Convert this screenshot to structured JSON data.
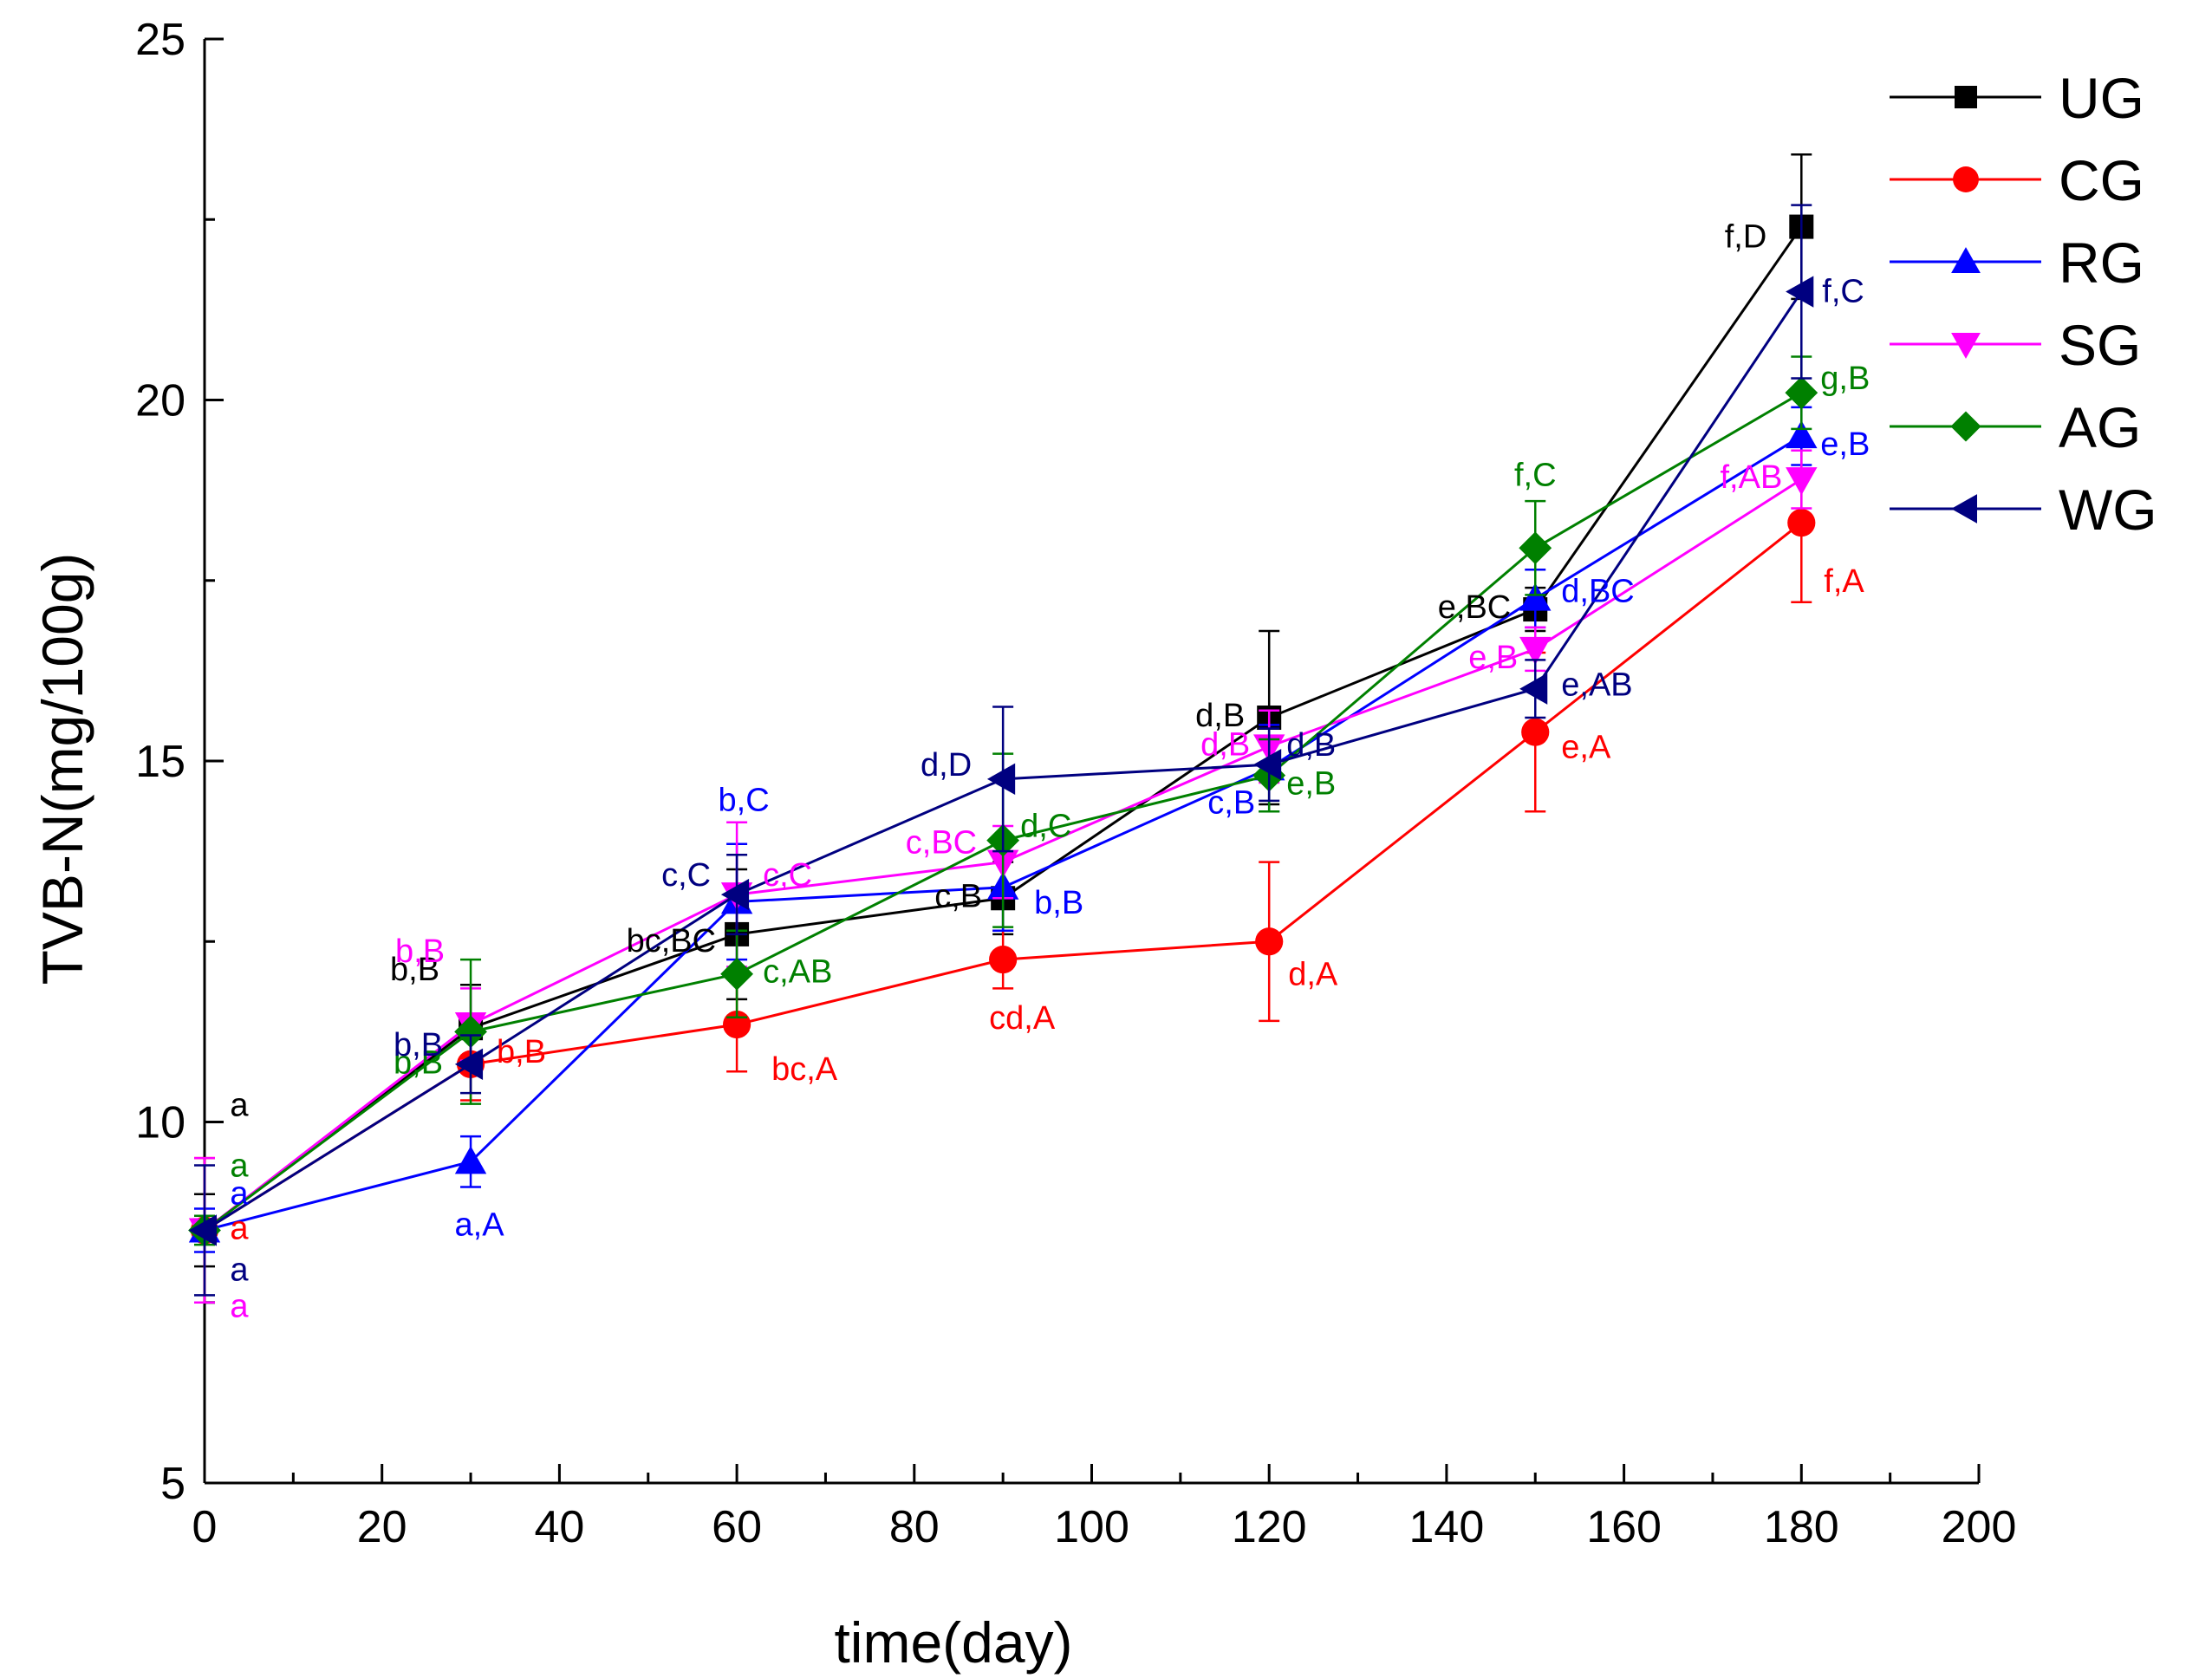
{
  "chart_data": {
    "type": "line",
    "title": "",
    "xlabel": "time(day)",
    "ylabel": "TVB-N(mg/100g)",
    "xlim": [
      0,
      200
    ],
    "ylim": [
      5,
      25
    ],
    "xticks": [
      0,
      20,
      40,
      60,
      80,
      100,
      120,
      140,
      160,
      180,
      200
    ],
    "yticks": [
      5,
      10,
      15,
      20,
      25
    ],
    "grid": false,
    "legend_position": "top-right",
    "x": [
      0,
      30,
      60,
      90,
      120,
      150,
      180
    ],
    "series": [
      {
        "name": "UG",
        "color": "#000000",
        "marker": "square",
        "values": [
          8.5,
          11.3,
          12.6,
          13.1,
          15.6,
          17.1,
          22.4
        ],
        "errors": [
          0.5,
          0.6,
          0.9,
          0.5,
          1.2,
          0.3,
          1.0
        ],
        "labels": [
          "a",
          "b,B",
          "bc,BC",
          "c,B",
          "d,B",
          "e,BC",
          "f,D"
        ]
      },
      {
        "name": "CG",
        "color": "#ff0000",
        "marker": "circle",
        "values": [
          8.5,
          10.8,
          11.35,
          12.25,
          12.5,
          15.4,
          18.3
        ],
        "errors": [
          1.0,
          0.5,
          0.65,
          0.4,
          1.1,
          1.1,
          1.1
        ],
        "labels": [
          "a",
          "b,B",
          "bc,A",
          "cd,A",
          "d,A",
          "e,A",
          "f,A"
        ]
      },
      {
        "name": "RG",
        "color": "#0000ff",
        "marker": "triangle-up",
        "values": [
          8.5,
          9.45,
          13.05,
          13.25,
          14.9,
          17.25,
          19.5
        ],
        "errors": [
          0.3,
          0.35,
          0.8,
          0.6,
          0.6,
          0.4,
          0.4
        ],
        "labels": [
          "a",
          "a,A",
          "b,C",
          "b,B",
          "c,B",
          "d,BC",
          "e,B"
        ]
      },
      {
        "name": "SG",
        "color": "#ff00ff",
        "marker": "triangle-down",
        "values": [
          8.5,
          11.35,
          13.15,
          13.6,
          15.2,
          16.55,
          18.9
        ],
        "errors": [
          1.0,
          0.5,
          1.0,
          0.5,
          0.5,
          0.3,
          0.4
        ],
        "labels": [
          "a",
          "b,B",
          "c,C",
          "c,BC",
          "d,B",
          "e,B",
          "f,AB"
        ]
      },
      {
        "name": "AG",
        "color": "#008000",
        "marker": "diamond",
        "values": [
          8.5,
          11.25,
          12.05,
          13.9,
          14.8,
          17.95,
          20.1
        ],
        "errors": [
          0.2,
          1.0,
          0.6,
          1.2,
          0.5,
          0.65,
          0.5
        ],
        "labels": [
          "a",
          "b,B",
          "c,AB",
          "d,C",
          "e,B",
          "f,C",
          "g,B"
        ]
      },
      {
        "name": "WG",
        "color": "#000080",
        "marker": "triangle-left",
        "values": [
          8.5,
          10.8,
          13.15,
          14.75,
          14.95,
          16.0,
          21.5
        ],
        "errors": [
          0.9,
          0.4,
          0.55,
          1.0,
          0.5,
          0.4,
          1.2
        ],
        "labels": [
          "a",
          "b,B",
          "c,C",
          "d,D",
          "d,B",
          "e,AB",
          "f,C"
        ]
      }
    ]
  }
}
